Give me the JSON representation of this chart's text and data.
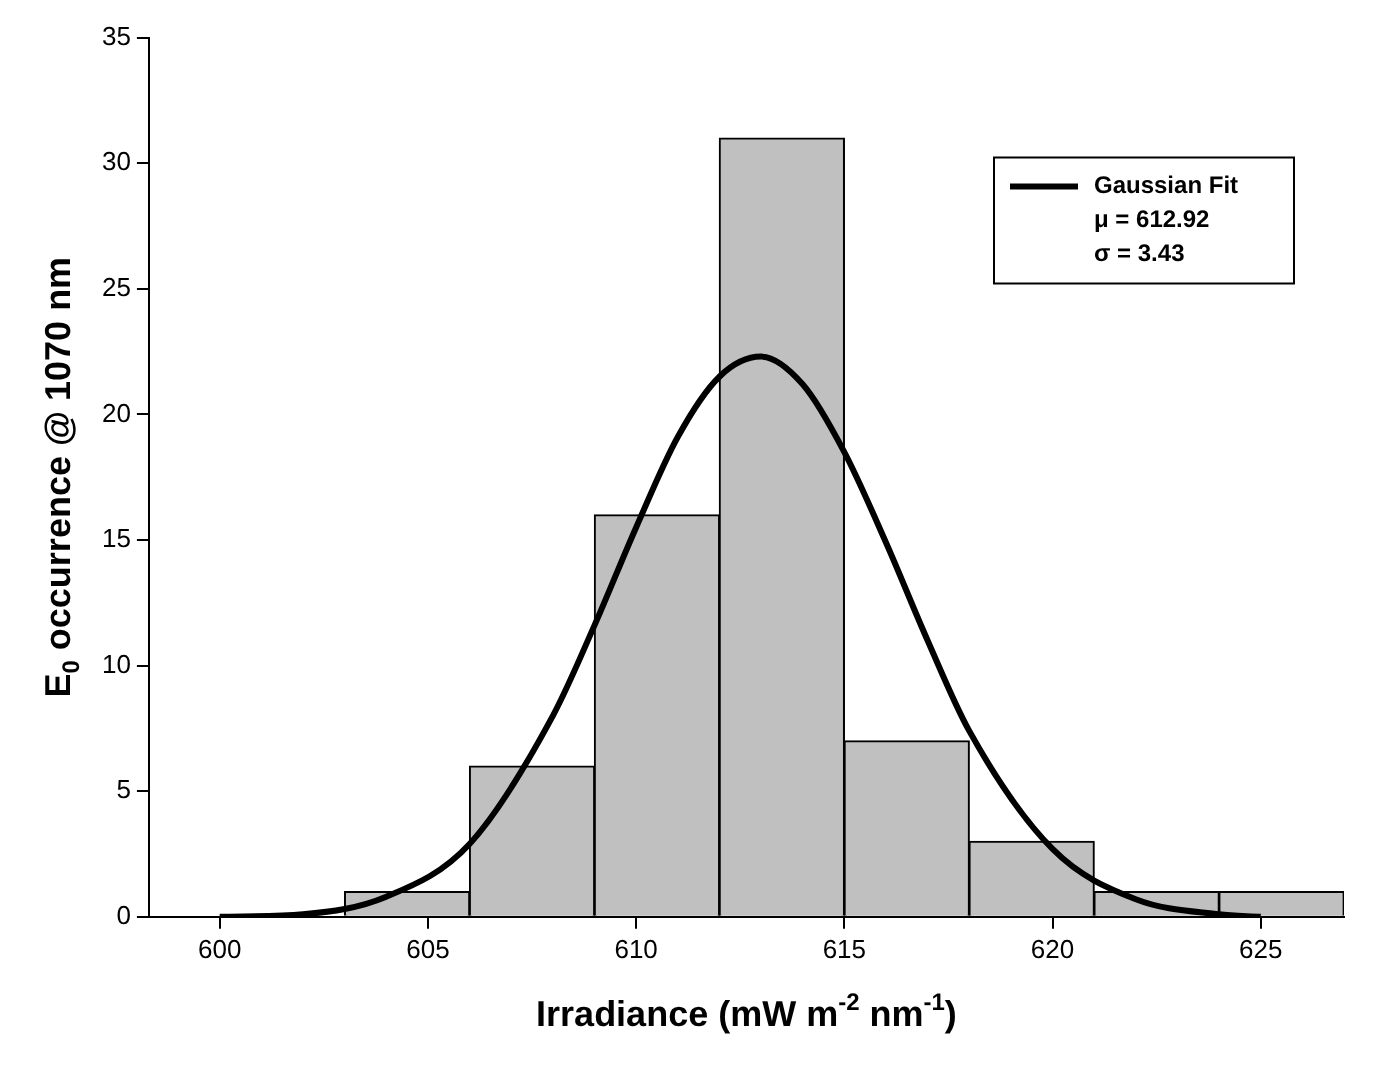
{
  "chart_data": {
    "type": "histogram",
    "xlabel": "Irradiance (mW m$^{-2}$ nm$^{-1}$)",
    "ylabel": "E$_{0}$ occurrence @ 1070 nm",
    "bins": [
      603,
      606,
      609,
      612,
      615,
      618,
      621,
      624,
      627
    ],
    "values": [
      1,
      6,
      16,
      31,
      7,
      3,
      1,
      1
    ],
    "color": "#c0c0c0",
    "series": [
      {
        "type": "line",
        "name": "Gaussian Fit",
        "color": "#000000",
        "x": [
          600,
          602,
          604,
          606,
          608,
          609,
          610,
          611,
          612,
          613,
          614,
          615,
          616,
          617,
          618,
          620,
          622,
          624,
          625
        ],
        "values": [
          0.0,
          0.1,
          0.8,
          2.9,
          8.0,
          11.6,
          15.5,
          19.1,
          21.5,
          22.3,
          21.2,
          18.5,
          14.9,
          11.0,
          7.4,
          2.7,
          0.7,
          0.1,
          0.0
        ]
      }
    ],
    "annotations": [
      "μ = 612.92",
      "σ = 3.43"
    ],
    "xlim": [
      598.3,
      627
    ],
    "xticks": [
      600,
      605,
      610,
      615,
      620,
      625
    ],
    "ylim": [
      0,
      35
    ],
    "yticks": [
      0,
      5,
      10,
      15,
      20,
      25,
      30,
      35
    ],
    "grid": false,
    "legend": "top right",
    "marker": "none",
    "line_style": "solid"
  }
}
